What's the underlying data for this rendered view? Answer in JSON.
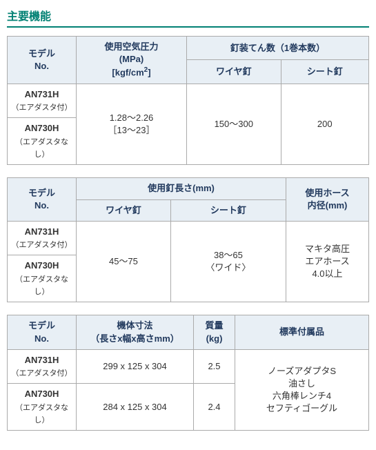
{
  "title": "主要機能",
  "table1": {
    "headers": {
      "model": "モデル\nNo.",
      "pressure": "使用空気圧力\n(MPa)\n[kgf/cm²]",
      "loading": "釘装てん数（1巻本数）",
      "wire": "ワイヤ釘",
      "sheet": "シート釘"
    },
    "rows": {
      "model1_main": "AN731H",
      "model1_sub": "（エアダスタ付）",
      "model2_main": "AN730H",
      "model2_sub": "（エアダスタなし）",
      "pressure_val": "1.28～2.26\n［13～23］",
      "wire_val": "150～300",
      "sheet_val": "200"
    }
  },
  "table2": {
    "headers": {
      "model": "モデル\nNo.",
      "nail_len": "使用釘長さ(mm)",
      "wire": "ワイヤ釘",
      "sheet": "シート釘",
      "hose": "使用ホース\n内径(mm)"
    },
    "rows": {
      "model1_main": "AN731H",
      "model1_sub": "（エアダスタ付）",
      "model2_main": "AN730H",
      "model2_sub": "（エアダスタなし）",
      "wire_val": "45～75",
      "sheet_val": "38～65\n〈ワイド〉",
      "hose_val": "マキタ高圧\nエアホース\n4.0以上"
    }
  },
  "table3": {
    "headers": {
      "model": "モデル\nNo.",
      "dims": "機体寸法\n（長さx幅x高さmm）",
      "mass": "質量\n(kg)",
      "acc": "標準付属品"
    },
    "rows": {
      "model1_main": "AN731H",
      "model1_sub": "（エアダスタ付）",
      "model2_main": "AN730H",
      "model2_sub": "（エアダスタなし）",
      "dims1": "299 x 125 x 304",
      "dims2": "284 x 125 x 304",
      "mass1": "2.5",
      "mass2": "2.4",
      "acc_val": "ノーズアダプタS\n油さし\n六角棒レンチ4\nセフティゴーグル"
    }
  }
}
